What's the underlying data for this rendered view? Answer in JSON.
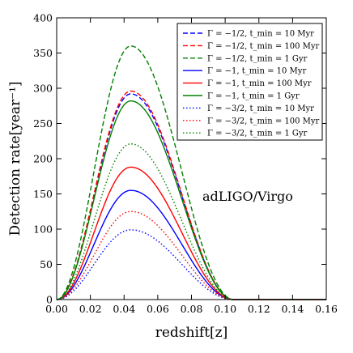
{
  "chart_data": {
    "type": "line",
    "xlabel": "redshift[z]",
    "ylabel": "Detection rate[year⁻¹]",
    "xlim": [
      0.0,
      0.16
    ],
    "ylim": [
      0,
      400
    ],
    "x_ticks": [
      "0.00",
      "0.02",
      "0.04",
      "0.06",
      "0.08",
      "0.10",
      "0.12",
      "0.14",
      "0.16"
    ],
    "y_ticks": [
      "0",
      "50",
      "100",
      "150",
      "200",
      "250",
      "300",
      "350",
      "400"
    ],
    "grid": false,
    "legend_position": "top-right",
    "annotation": "adLIGO/Virgo",
    "curve_model": {
      "x_start": 0.0,
      "x_peak": 0.044,
      "x_end": 0.105
    },
    "series": [
      {
        "name": "Γ = −1/2, t_min = 10 Myr",
        "color": "#0000ff",
        "dash": "dashed",
        "peak": 292
      },
      {
        "name": "Γ = −1/2, t_min = 100 Myr",
        "color": "#ff0000",
        "dash": "dashed",
        "peak": 296
      },
      {
        "name": "Γ = −1/2, t_min = 1 Gyr",
        "color": "#008000",
        "dash": "dashed",
        "peak": 360
      },
      {
        "name": "Γ = −1, t_min = 10 Myr",
        "color": "#0000ff",
        "dash": "solid",
        "peak": 155
      },
      {
        "name": "Γ = −1, t_min = 100 Myr",
        "color": "#ff0000",
        "dash": "solid",
        "peak": 188
      },
      {
        "name": "Γ = −1, t_min = 1 Gyr",
        "color": "#008000",
        "dash": "solid",
        "peak": 282
      },
      {
        "name": "Γ = −3/2, t_min = 10 Myr",
        "color": "#0000ff",
        "dash": "dotted",
        "peak": 99
      },
      {
        "name": "Γ = −3/2, t_min = 100 Myr",
        "color": "#ff0000",
        "dash": "dotted",
        "peak": 125
      },
      {
        "name": "Γ = −3/2, t_min = 1 Gyr",
        "color": "#008000",
        "dash": "dotted",
        "peak": 221
      }
    ]
  }
}
